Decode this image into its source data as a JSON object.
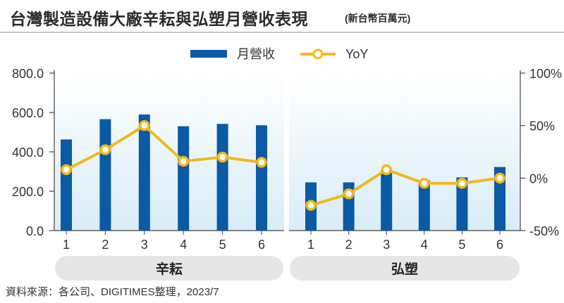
{
  "title": "台灣製造設備大廠辛耘與弘塑月營收表現",
  "subtitle": "(新台幣百萬元)",
  "source": "資料來源：各公司、DIGITIMES整理，2023/7",
  "colors": {
    "bar": "#0a5aa5",
    "line": "#f3b81a",
    "panel_top": "#ffffff",
    "panel_bottom": "#d8ecf8",
    "group_pill": "#e6e6e6",
    "text": "#333333"
  },
  "chart_data": {
    "type": "bar+line",
    "legend": [
      "月營收",
      "YoY"
    ],
    "legend_position": "top-center",
    "y_left": {
      "min": 0,
      "max": 800,
      "ticks": [
        "800.0",
        "600.0",
        "400.0",
        "200.0",
        "0.0"
      ]
    },
    "y_right": {
      "min": -50,
      "max": 100,
      "ticks": [
        "100%",
        "50%",
        "0%",
        "-50%"
      ]
    },
    "groups": [
      {
        "name": "辛耘",
        "categories": [
          "1",
          "2",
          "3",
          "4",
          "5",
          "6"
        ],
        "revenue": [
          463,
          566,
          590,
          530,
          542,
          535
        ],
        "yoy": [
          8,
          27,
          50,
          16,
          20,
          15
        ]
      },
      {
        "name": "弘塑",
        "categories": [
          "1",
          "2",
          "3",
          "4",
          "5",
          "6"
        ],
        "revenue": [
          245,
          245,
          305,
          255,
          270,
          323
        ],
        "yoy": [
          -26,
          -15,
          8,
          -5,
          -5,
          0
        ]
      }
    ]
  }
}
